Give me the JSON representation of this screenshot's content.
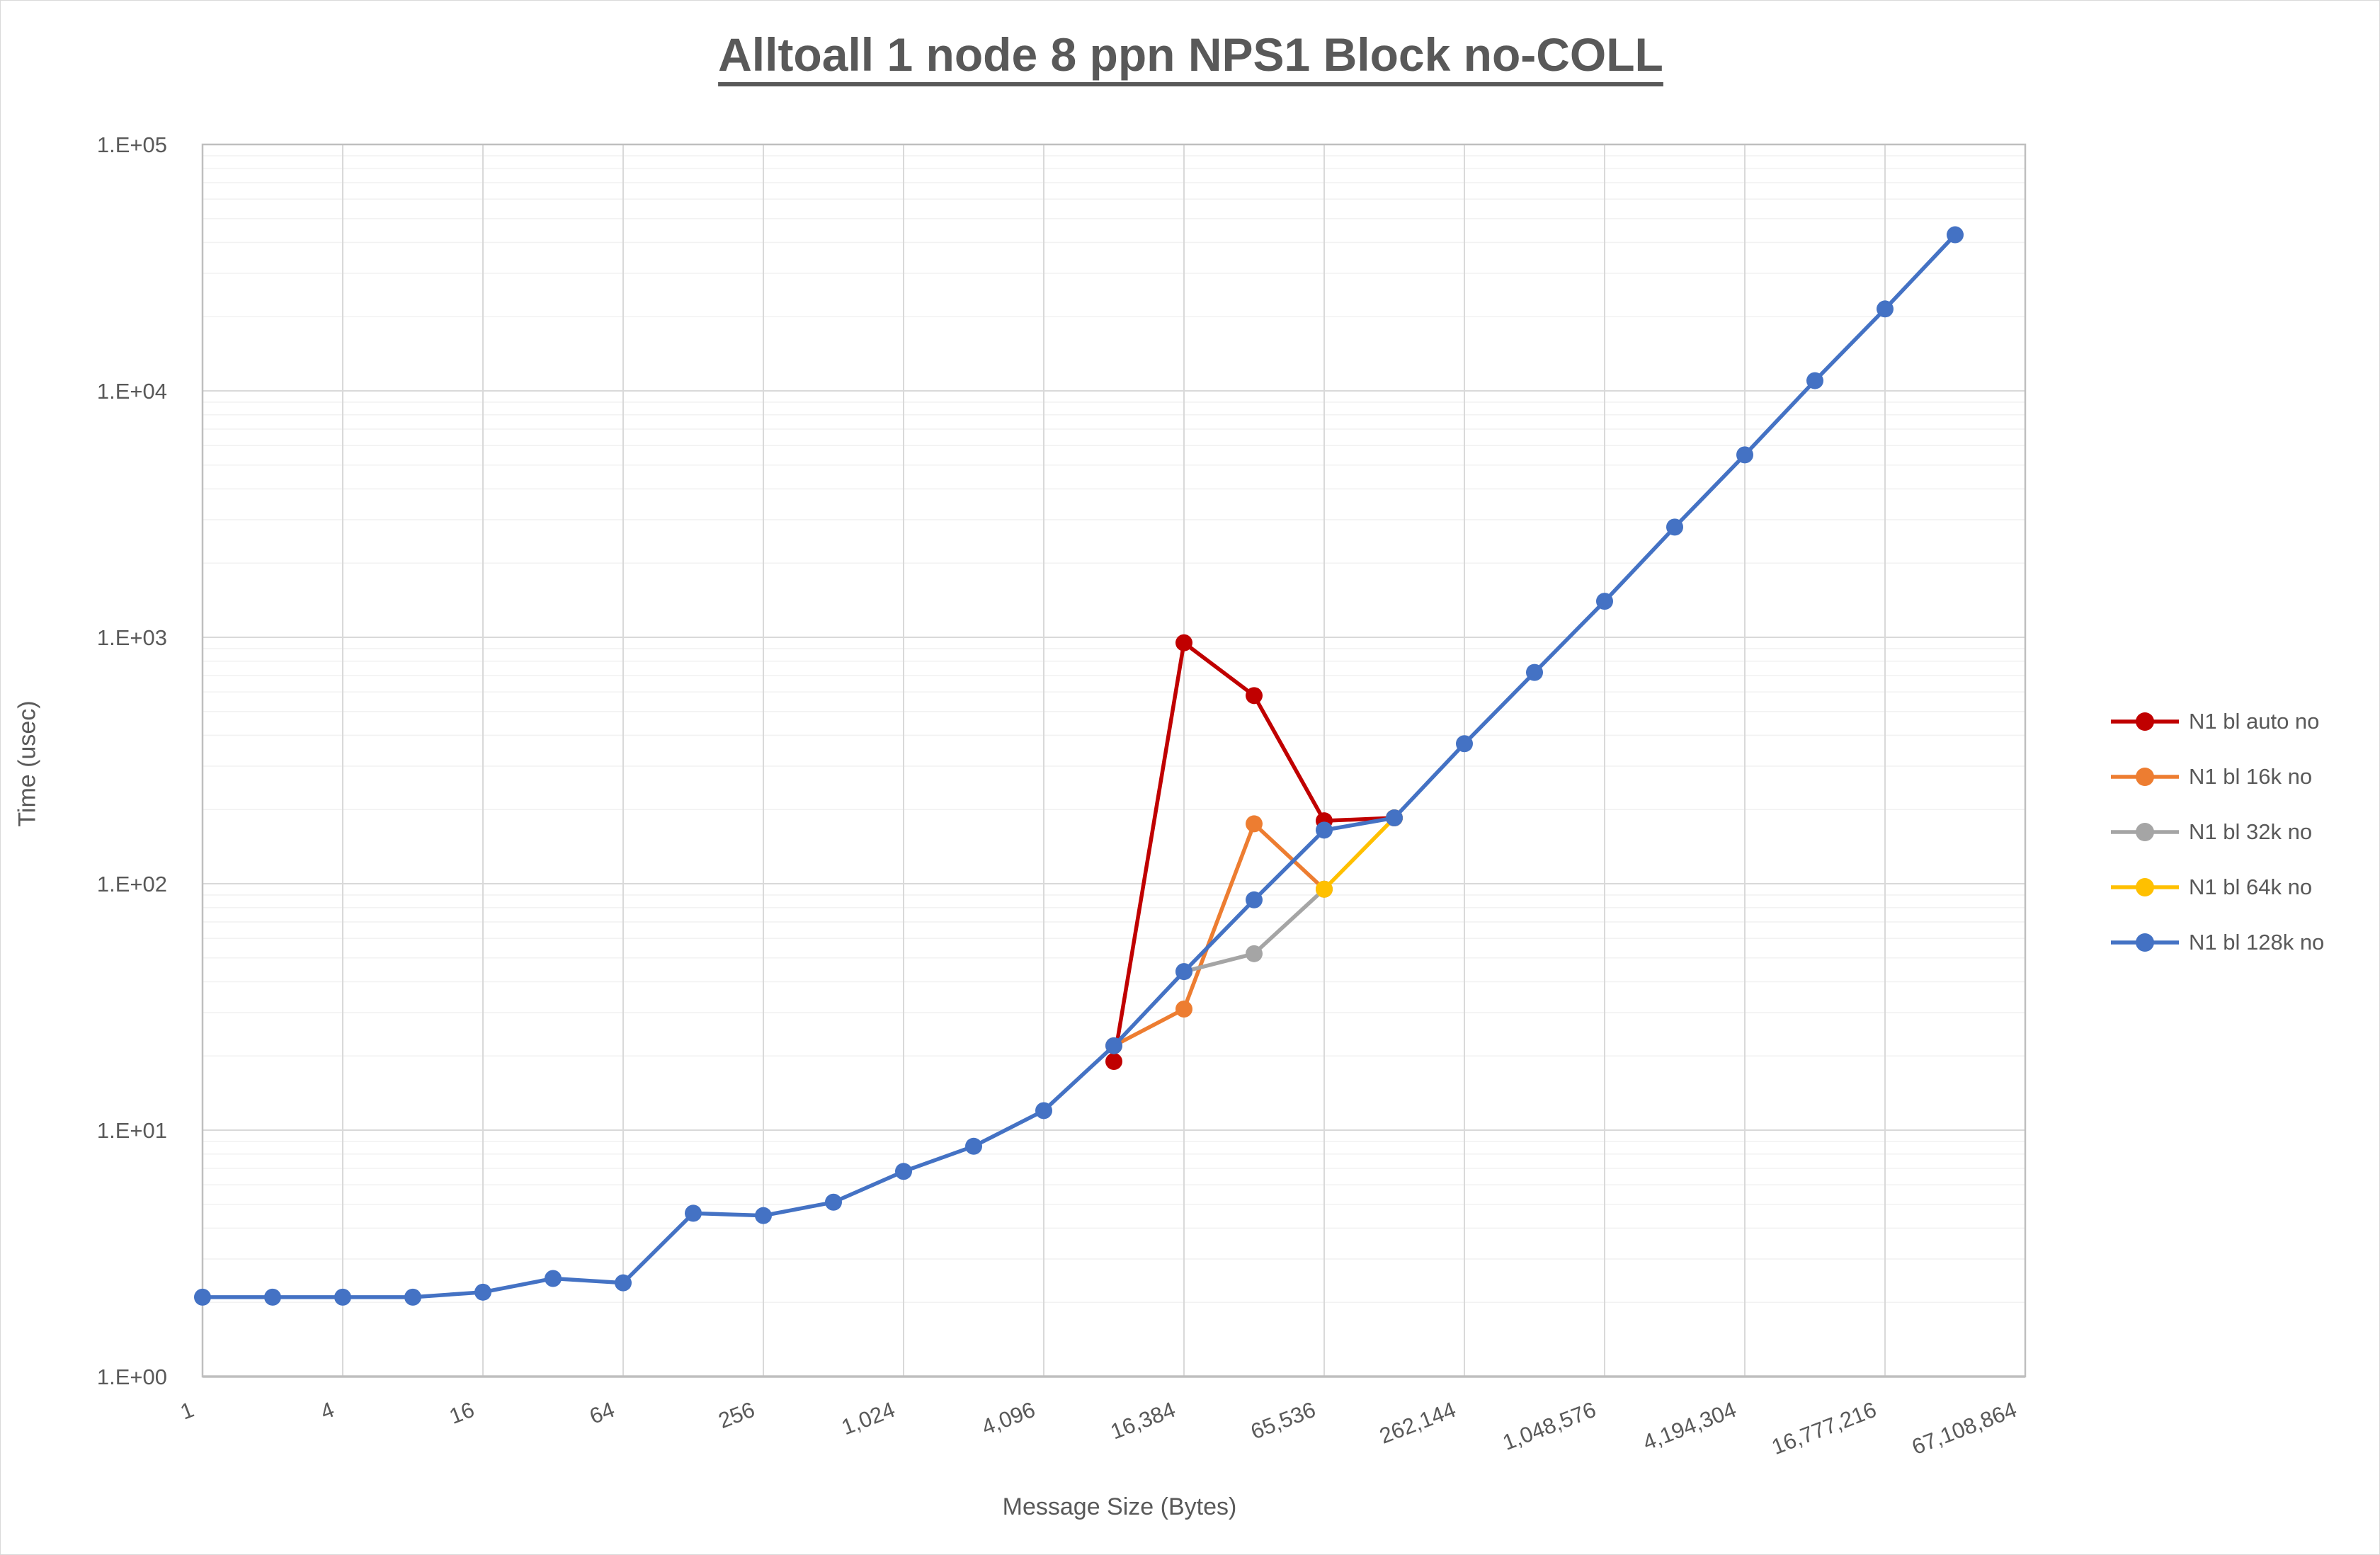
{
  "title": "Alltoall 1 node 8 ppn NPS1 Block no-COLL",
  "axes": {
    "y": {
      "title": "Time (usec)",
      "tick_labels": [
        "1.E+00",
        "1.E+01",
        "1.E+02",
        "1.E+03",
        "1.E+04",
        "1.E+05"
      ]
    },
    "x": {
      "title": "Message Size (Bytes)",
      "tick_labels": [
        "1",
        "4",
        "16",
        "64",
        "256",
        "1,024",
        "4,096",
        "16,384",
        "65,536",
        "262,144",
        "1,048,576",
        "4,194,304",
        "16,777,216",
        "67,108,864"
      ],
      "tick_values": [
        1,
        4,
        16,
        64,
        256,
        1024,
        4096,
        16384,
        65536,
        262144,
        1048576,
        4194304,
        16777216,
        67108864
      ]
    }
  },
  "legend": {
    "position": "right",
    "items": [
      {
        "label": "N1 bl auto no",
        "color": "#C00000"
      },
      {
        "label": "N1 bl 16k no",
        "color": "#ED7D31"
      },
      {
        "label": "N1 bl 32k no",
        "color": "#A5A5A5"
      },
      {
        "label": "N1 bl 64k no",
        "color": "#FFC000"
      },
      {
        "label": "N1 bl 128k no",
        "color": "#4472C4"
      }
    ]
  },
  "colors": {
    "text": "#595959",
    "grid_major": "#d9d9d9",
    "grid_minor": "#f2f2f2",
    "axis_line": "#bfbfbf"
  },
  "chart_data": {
    "type": "line",
    "title": "Alltoall 1 node 8 ppn NPS1 Block no-COLL",
    "xlabel": "Message Size (Bytes)",
    "ylabel": "Time (usec)",
    "x_scale": "log2",
    "y_scale": "log10",
    "ylim": [
      1,
      100000
    ],
    "xlim": [
      1,
      67108864
    ],
    "grid": {
      "y_major": true,
      "y_minor_log": true,
      "x_major": true
    },
    "legend_position": "right",
    "x_tick_values": [
      1,
      4,
      16,
      64,
      256,
      1024,
      4096,
      16384,
      65536,
      262144,
      1048576,
      4194304,
      16777216,
      67108864
    ],
    "series": [
      {
        "name": "N1 bl auto no",
        "color": "#C00000",
        "x": [
          8192,
          16384,
          32768,
          65536,
          131072
        ],
        "values": [
          19,
          950,
          580,
          180,
          185
        ]
      },
      {
        "name": "N1 bl 16k no",
        "color": "#ED7D31",
        "x": [
          8192,
          16384,
          32768,
          65536
        ],
        "values": [
          22,
          31,
          175,
          95
        ]
      },
      {
        "name": "N1 bl 32k no",
        "color": "#A5A5A5",
        "x": [
          16384,
          32768,
          65536
        ],
        "values": [
          44,
          52,
          95
        ]
      },
      {
        "name": "N1 bl 64k no",
        "color": "#FFC000",
        "x": [
          65536,
          131072
        ],
        "values": [
          95,
          185
        ]
      },
      {
        "name": "N1 bl 128k no",
        "color": "#4472C4",
        "x": [
          1,
          2,
          4,
          8,
          16,
          32,
          64,
          128,
          256,
          512,
          1024,
          2048,
          4096,
          8192,
          16384,
          32768,
          65536,
          131072,
          262144,
          524288,
          1048576,
          2097152,
          4194304,
          8388608,
          16777216,
          33554432
        ],
        "values": [
          2.1,
          2.1,
          2.1,
          2.1,
          2.2,
          2.5,
          2.4,
          4.6,
          4.5,
          5.1,
          6.8,
          8.6,
          12,
          22,
          44,
          86,
          165,
          185,
          370,
          720,
          1400,
          2800,
          5500,
          11000,
          21500,
          43000
        ]
      }
    ]
  }
}
